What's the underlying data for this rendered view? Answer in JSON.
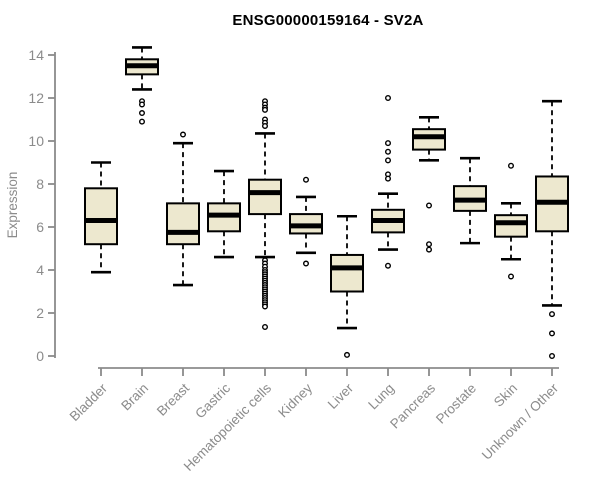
{
  "chart_data": {
    "type": "boxplot",
    "title": "ENSG00000159164 - SV2A",
    "xlabel": "",
    "ylabel": "Expression",
    "ylim": [
      0,
      14
    ],
    "yticks": [
      0,
      2,
      4,
      6,
      8,
      10,
      12,
      14
    ],
    "grid": "off",
    "categories": [
      "Bladder",
      "Brain",
      "Breast",
      "Gastric",
      "Hematopoietic cells",
      "Kidney",
      "Liver",
      "Lung",
      "Pancreas",
      "Prostate",
      "Skin",
      "Unknown / Other"
    ],
    "series": [
      {
        "name": "Bladder",
        "whisker_low": 3.9,
        "q1": 5.2,
        "median": 6.3,
        "q3": 7.8,
        "whisker_high": 9.0,
        "outliers": []
      },
      {
        "name": "Brain",
        "whisker_low": 12.4,
        "q1": 13.1,
        "median": 13.5,
        "q3": 13.8,
        "whisker_high": 14.35,
        "outliers": [
          11.85,
          11.7,
          11.3,
          10.9
        ]
      },
      {
        "name": "Breast",
        "whisker_low": 3.3,
        "q1": 5.2,
        "median": 5.75,
        "q3": 7.1,
        "whisker_high": 9.9,
        "outliers": [
          10.3
        ]
      },
      {
        "name": "Gastric",
        "whisker_low": 4.6,
        "q1": 5.8,
        "median": 6.55,
        "q3": 7.1,
        "whisker_high": 8.6,
        "outliers": []
      },
      {
        "name": "Hematopoietic cells",
        "whisker_low": 4.6,
        "q1": 6.6,
        "median": 7.6,
        "q3": 8.2,
        "whisker_high": 10.35,
        "outliers": [
          11.85,
          11.7,
          11.55,
          11.45,
          11.0,
          10.85,
          10.7,
          4.45,
          4.3,
          4.15,
          4.0,
          3.9,
          3.8,
          3.7,
          3.6,
          3.5,
          3.4,
          3.3,
          3.2,
          3.1,
          3.0,
          2.9,
          2.8,
          2.7,
          2.6,
          2.5,
          2.4,
          2.3,
          1.35
        ]
      },
      {
        "name": "Kidney",
        "whisker_low": 4.8,
        "q1": 5.7,
        "median": 6.05,
        "q3": 6.6,
        "whisker_high": 7.4,
        "outliers": [
          8.2,
          4.3
        ]
      },
      {
        "name": "Liver",
        "whisker_low": 1.3,
        "q1": 3.0,
        "median": 4.1,
        "q3": 4.7,
        "whisker_high": 6.5,
        "outliers": [
          0.05
        ]
      },
      {
        "name": "Lung",
        "whisker_low": 4.95,
        "q1": 5.75,
        "median": 6.3,
        "q3": 6.8,
        "whisker_high": 7.55,
        "outliers": [
          12.0,
          9.9,
          9.5,
          9.1,
          8.45,
          8.25,
          4.2
        ]
      },
      {
        "name": "Pancreas",
        "whisker_low": 9.1,
        "q1": 9.6,
        "median": 10.2,
        "q3": 10.55,
        "whisker_high": 11.1,
        "outliers": [
          7.0,
          5.2,
          4.95
        ]
      },
      {
        "name": "Prostate",
        "whisker_low": 5.25,
        "q1": 6.75,
        "median": 7.25,
        "q3": 7.9,
        "whisker_high": 9.2,
        "outliers": []
      },
      {
        "name": "Skin",
        "whisker_low": 4.5,
        "q1": 5.55,
        "median": 6.2,
        "q3": 6.55,
        "whisker_high": 7.1,
        "outliers": [
          8.85,
          3.7
        ]
      },
      {
        "name": "Unknown / Other",
        "whisker_low": 2.35,
        "q1": 5.8,
        "median": 7.15,
        "q3": 8.35,
        "whisker_high": 11.85,
        "outliers": [
          1.95,
          1.05,
          0.0
        ]
      }
    ],
    "colors": {
      "box_fill": "#EDE8CF",
      "box_stroke": "#000000",
      "median": "#000000",
      "whisker": "#000000",
      "outlier_stroke": "#000000",
      "outlier_fill": "#ffffff",
      "axis": "#8B8B8B",
      "tick_label": "#8B8B8B",
      "title": "#000000",
      "background": "#ffffff"
    }
  }
}
